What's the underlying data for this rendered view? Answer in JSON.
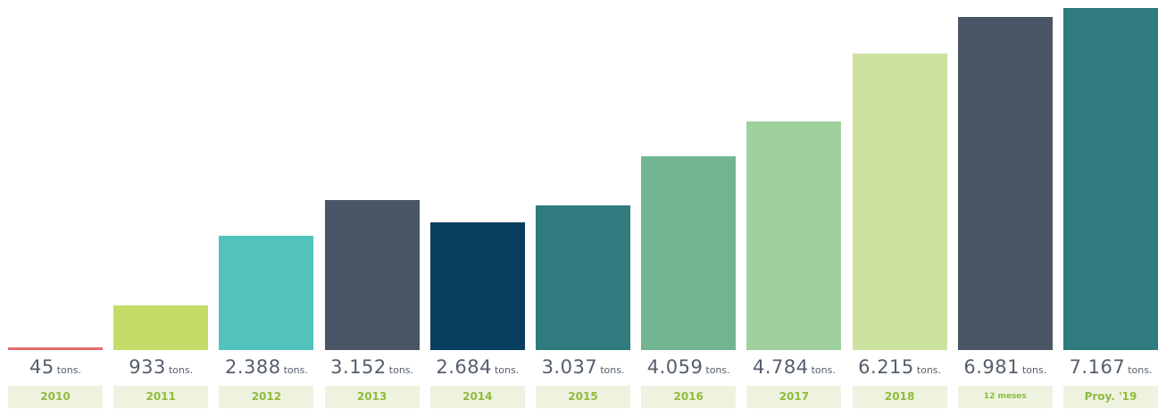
{
  "chart_data": {
    "type": "bar",
    "title": "",
    "xlabel": "",
    "ylabel": "",
    "unit": "tons.",
    "ylim": [
      0,
      7167
    ],
    "grid": false,
    "categories": [
      "2010",
      "2011",
      "2012",
      "2013",
      "2014",
      "2015",
      "2016",
      "2017",
      "2018",
      "12 meses",
      "Proy. '19"
    ],
    "values": [
      45,
      933,
      2388,
      3152,
      2684,
      3037,
      4059,
      4784,
      6215,
      6981,
      7167
    ],
    "value_labels": [
      "45",
      "933",
      "2.388",
      "3.152",
      "2.684",
      "3.037",
      "4.059",
      "4.784",
      "6.215",
      "6.981",
      "7.167"
    ],
    "colors": [
      "#e56b6f",
      "#c5dc68",
      "#52c3bb",
      "#4a5666",
      "#073e5e",
      "#2f7b7d",
      "#72b591",
      "#9ed19e",
      "#cde29e",
      "#4a5666",
      "#2f7b7d"
    ],
    "category_text_color": "#8fbb3d",
    "category_bg_color": "#eef3e0",
    "value_text_color": "#555f6b"
  }
}
